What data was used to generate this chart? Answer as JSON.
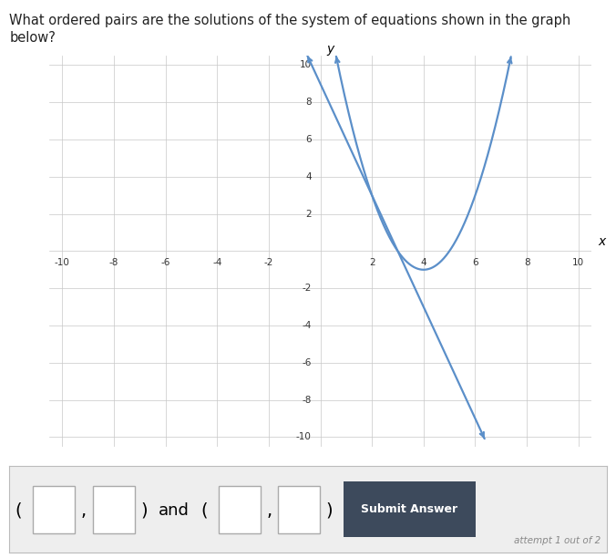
{
  "title_line1": "What ordered pairs are the solutions of the system of equations shown in the graph",
  "title_line2": "below?",
  "xlim": [
    -10,
    10
  ],
  "ylim": [
    -10,
    10
  ],
  "xticks": [
    -10,
    -8,
    -6,
    -4,
    -2,
    2,
    4,
    6,
    8,
    10
  ],
  "yticks": [
    -10,
    -8,
    -6,
    -4,
    -2,
    2,
    4,
    6,
    8,
    10
  ],
  "curve_color": "#5b8fc9",
  "curve_linewidth": 1.6,
  "parabola_a": 1,
  "parabola_b": -8,
  "parabola_c": 15,
  "line_m": -3,
  "line_b": 9,
  "background_color": "#ffffff",
  "grid_color": "#c8c8c8",
  "axis_color": "#000000",
  "answer_panel_color": "#eeeeee",
  "submit_button_color": "#3d4a5c",
  "figsize": [
    6.76,
    6.12
  ],
  "dpi": 100
}
